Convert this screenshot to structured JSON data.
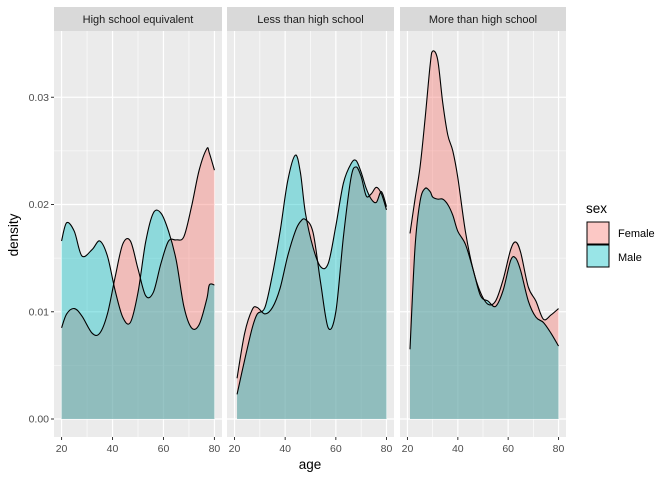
{
  "colors": {
    "panel_bg": "#ebebeb",
    "grid": "#ffffff",
    "strip_bg": "#d9d9d9",
    "female_fill": "#F8766D",
    "male_fill": "#00BFC4",
    "outline": "#000000"
  },
  "chart_data": {
    "type": "area",
    "chart_kind": "faceted density plot",
    "xlabel": "age",
    "ylabel": "density",
    "xlim": [
      20,
      80
    ],
    "ylim": [
      0,
      0.035
    ],
    "x_ticks": [
      20,
      40,
      60,
      80
    ],
    "y_ticks": [
      0.0,
      0.01,
      0.02,
      0.03
    ],
    "y_tick_labels": [
      "0.00",
      "0.01",
      "0.02",
      "0.03"
    ],
    "grid": true,
    "fill_alpha": 0.4,
    "legend": {
      "title": "sex",
      "position": "right",
      "entries": [
        {
          "label": "Female",
          "color": "#F8766D"
        },
        {
          "label": "Male",
          "color": "#00BFC4"
        }
      ]
    },
    "facets": [
      {
        "title": "High school equivalent",
        "x": [
          20,
          22,
          25,
          28,
          32,
          35,
          38,
          41,
          44,
          47,
          50,
          53,
          56,
          59,
          62,
          65,
          68,
          71,
          74,
          77,
          78,
          80
        ],
        "series": [
          {
            "name": "Female",
            "values": [
              0.0085,
              0.0098,
              0.0103,
              0.0096,
              0.008,
              0.008,
              0.0098,
              0.0132,
              0.0163,
              0.0166,
              0.014,
              0.0115,
              0.0118,
              0.0145,
              0.0166,
              0.0167,
              0.017,
              0.0198,
              0.0232,
              0.0252,
              0.0248,
              0.0232
            ]
          },
          {
            "name": "Male",
            "values": [
              0.0166,
              0.0183,
              0.0175,
              0.0152,
              0.0158,
              0.0166,
              0.0152,
              0.012,
              0.0095,
              0.009,
              0.0118,
              0.0165,
              0.0192,
              0.0192,
              0.0175,
              0.0148,
              0.0105,
              0.0085,
              0.0088,
              0.0112,
              0.0125,
              0.0125
            ]
          }
        ]
      },
      {
        "title": "Less than high school",
        "x": [
          21,
          24,
          27,
          29,
          32,
          35,
          38,
          41,
          44,
          46,
          48,
          51,
          54,
          57,
          60,
          63,
          66,
          68,
          70,
          72,
          74,
          76,
          78,
          80
        ],
        "series": [
          {
            "name": "Female",
            "values": [
              0.0038,
              0.008,
              0.0102,
              0.0104,
              0.0098,
              0.0104,
              0.0122,
              0.0152,
              0.0175,
              0.0184,
              0.0186,
              0.0174,
              0.0127,
              0.0085,
              0.01,
              0.017,
              0.0225,
              0.0235,
              0.0226,
              0.0208,
              0.021,
              0.0216,
              0.021,
              0.0195
            ]
          },
          {
            "name": "Male",
            "values": [
              0.0023,
              0.0055,
              0.0085,
              0.0098,
              0.0104,
              0.0135,
              0.0175,
              0.0222,
              0.0246,
              0.023,
              0.0192,
              0.016,
              0.0142,
              0.0145,
              0.018,
              0.022,
              0.0238,
              0.0241,
              0.023,
              0.0215,
              0.0205,
              0.0202,
              0.0212,
              0.0198
            ]
          }
        ]
      },
      {
        "title": "More than high school",
        "x": [
          21,
          23,
          25,
          27,
          29,
          30,
          32,
          34,
          36,
          38,
          40,
          43,
          46,
          49,
          52,
          55,
          58,
          61,
          63,
          65,
          68,
          71,
          74,
          77,
          80
        ],
        "series": [
          {
            "name": "Female",
            "values": [
              0.0173,
              0.0205,
              0.0235,
              0.028,
              0.033,
              0.0343,
              0.0335,
              0.0295,
              0.0265,
              0.025,
              0.0225,
              0.0175,
              0.014,
              0.0118,
              0.0107,
              0.011,
              0.013,
              0.0158,
              0.0165,
              0.0155,
              0.0123,
              0.011,
              0.0093,
              0.0097,
              0.0103
            ]
          },
          {
            "name": "Male",
            "values": [
              0.0065,
              0.016,
              0.0203,
              0.0215,
              0.0212,
              0.0207,
              0.0205,
              0.0205,
              0.02,
              0.019,
              0.0175,
              0.0163,
              0.014,
              0.0115,
              0.011,
              0.0105,
              0.012,
              0.0148,
              0.015,
              0.0138,
              0.011,
              0.0095,
              0.009,
              0.008,
              0.0068
            ]
          }
        ]
      }
    ]
  }
}
